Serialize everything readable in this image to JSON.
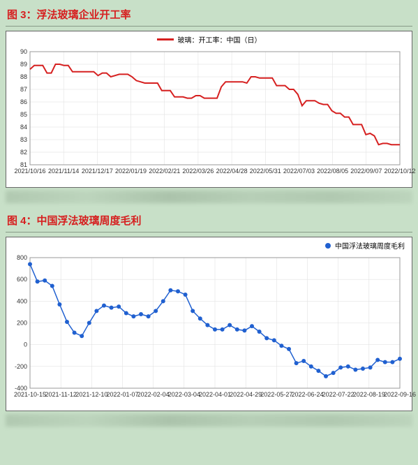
{
  "chart1": {
    "type": "line",
    "figure_label": "图 3：浮法玻璃企业开工率",
    "legend_label": "玻璃：开工率：中国（日）",
    "line_color": "#d62020",
    "line_width": 2,
    "background_color": "#ffffff",
    "border_color": "#666666",
    "grid_color": "#dddddd",
    "tick_font_size": 9,
    "legend_font_size": 10,
    "ylim": [
      81,
      90
    ],
    "ytick_step": 1,
    "x_labels": [
      "2021/10/16",
      "2021/11/14",
      "2021/12/17",
      "2022/01/19",
      "2022/02/21",
      "2022/03/26",
      "2022/04/28",
      "2022/05/31",
      "2022/07/03",
      "2022/08/05",
      "2022/09/07",
      "2022/10/12"
    ],
    "series": [
      {
        "x": 0,
        "y": 88.6
      },
      {
        "x": 1,
        "y": 88.9
      },
      {
        "x": 2,
        "y": 88.9
      },
      {
        "x": 3,
        "y": 88.9
      },
      {
        "x": 4,
        "y": 88.3
      },
      {
        "x": 5,
        "y": 88.3
      },
      {
        "x": 6,
        "y": 89.0
      },
      {
        "x": 7,
        "y": 89.0
      },
      {
        "x": 8,
        "y": 88.9
      },
      {
        "x": 9,
        "y": 88.9
      },
      {
        "x": 10,
        "y": 88.4
      },
      {
        "x": 11,
        "y": 88.4
      },
      {
        "x": 12,
        "y": 88.4
      },
      {
        "x": 13,
        "y": 88.4
      },
      {
        "x": 14,
        "y": 88.4
      },
      {
        "x": 15,
        "y": 88.4
      },
      {
        "x": 16,
        "y": 88.1
      },
      {
        "x": 17,
        "y": 88.3
      },
      {
        "x": 18,
        "y": 88.3
      },
      {
        "x": 19,
        "y": 88.0
      },
      {
        "x": 20,
        "y": 88.1
      },
      {
        "x": 21,
        "y": 88.2
      },
      {
        "x": 22,
        "y": 88.2
      },
      {
        "x": 23,
        "y": 88.2
      },
      {
        "x": 24,
        "y": 88.0
      },
      {
        "x": 25,
        "y": 87.7
      },
      {
        "x": 26,
        "y": 87.6
      },
      {
        "x": 27,
        "y": 87.5
      },
      {
        "x": 28,
        "y": 87.5
      },
      {
        "x": 29,
        "y": 87.5
      },
      {
        "x": 30,
        "y": 87.5
      },
      {
        "x": 31,
        "y": 86.9
      },
      {
        "x": 32,
        "y": 86.9
      },
      {
        "x": 33,
        "y": 86.9
      },
      {
        "x": 34,
        "y": 86.4
      },
      {
        "x": 35,
        "y": 86.4
      },
      {
        "x": 36,
        "y": 86.4
      },
      {
        "x": 37,
        "y": 86.3
      },
      {
        "x": 38,
        "y": 86.3
      },
      {
        "x": 39,
        "y": 86.5
      },
      {
        "x": 40,
        "y": 86.5
      },
      {
        "x": 41,
        "y": 86.3
      },
      {
        "x": 42,
        "y": 86.3
      },
      {
        "x": 43,
        "y": 86.3
      },
      {
        "x": 44,
        "y": 86.3
      },
      {
        "x": 45,
        "y": 87.2
      },
      {
        "x": 46,
        "y": 87.6
      },
      {
        "x": 47,
        "y": 87.6
      },
      {
        "x": 48,
        "y": 87.6
      },
      {
        "x": 49,
        "y": 87.6
      },
      {
        "x": 50,
        "y": 87.6
      },
      {
        "x": 51,
        "y": 87.5
      },
      {
        "x": 52,
        "y": 88.0
      },
      {
        "x": 53,
        "y": 88.0
      },
      {
        "x": 54,
        "y": 87.9
      },
      {
        "x": 55,
        "y": 87.9
      },
      {
        "x": 56,
        "y": 87.9
      },
      {
        "x": 57,
        "y": 87.9
      },
      {
        "x": 58,
        "y": 87.3
      },
      {
        "x": 59,
        "y": 87.3
      },
      {
        "x": 60,
        "y": 87.3
      },
      {
        "x": 61,
        "y": 87.0
      },
      {
        "x": 62,
        "y": 87.0
      },
      {
        "x": 63,
        "y": 86.6
      },
      {
        "x": 64,
        "y": 85.7
      },
      {
        "x": 65,
        "y": 86.1
      },
      {
        "x": 66,
        "y": 86.1
      },
      {
        "x": 67,
        "y": 86.1
      },
      {
        "x": 68,
        "y": 85.9
      },
      {
        "x": 69,
        "y": 85.8
      },
      {
        "x": 70,
        "y": 85.8
      },
      {
        "x": 71,
        "y": 85.3
      },
      {
        "x": 72,
        "y": 85.1
      },
      {
        "x": 73,
        "y": 85.1
      },
      {
        "x": 74,
        "y": 84.8
      },
      {
        "x": 75,
        "y": 84.8
      },
      {
        "x": 76,
        "y": 84.2
      },
      {
        "x": 77,
        "y": 84.2
      },
      {
        "x": 78,
        "y": 84.2
      },
      {
        "x": 79,
        "y": 83.4
      },
      {
        "x": 80,
        "y": 83.5
      },
      {
        "x": 81,
        "y": 83.3
      },
      {
        "x": 82,
        "y": 82.6
      },
      {
        "x": 83,
        "y": 82.7
      },
      {
        "x": 84,
        "y": 82.7
      },
      {
        "x": 85,
        "y": 82.6
      },
      {
        "x": 86,
        "y": 82.6
      },
      {
        "x": 87,
        "y": 82.6
      }
    ],
    "x_max": 87
  },
  "chart2": {
    "type": "line",
    "figure_label": "图 4：中国浮法玻璃周度毛利",
    "legend_label": "中国浮法玻璃周度毛利",
    "line_color": "#2060d0",
    "line_width": 1.5,
    "marker_style": "circle",
    "marker_size": 3,
    "marker_color": "#2060d0",
    "background_color": "#ffffff",
    "border_color": "#666666",
    "grid_color": "#dddddd",
    "tick_font_size": 9,
    "legend_font_size": 9,
    "ylim": [
      -400,
      800
    ],
    "ytick_step": 200,
    "x_labels": [
      "2021-10-15",
      "2021-11-12",
      "2021-12-10",
      "2022-01-07",
      "2022-02-04",
      "2022-03-04",
      "2022-04-01",
      "2022-04-29",
      "2022-05-27",
      "2022-06-24",
      "2022-07-22",
      "2022-08-19",
      "2022-09-16"
    ],
    "series": [
      {
        "x": 0,
        "y": 740
      },
      {
        "x": 1,
        "y": 580
      },
      {
        "x": 2,
        "y": 590
      },
      {
        "x": 3,
        "y": 540
      },
      {
        "x": 4,
        "y": 370
      },
      {
        "x": 5,
        "y": 210
      },
      {
        "x": 6,
        "y": 110
      },
      {
        "x": 7,
        "y": 80
      },
      {
        "x": 8,
        "y": 200
      },
      {
        "x": 9,
        "y": 310
      },
      {
        "x": 10,
        "y": 360
      },
      {
        "x": 11,
        "y": 340
      },
      {
        "x": 12,
        "y": 350
      },
      {
        "x": 13,
        "y": 290
      },
      {
        "x": 14,
        "y": 260
      },
      {
        "x": 15,
        "y": 280
      },
      {
        "x": 16,
        "y": 260
      },
      {
        "x": 17,
        "y": 310
      },
      {
        "x": 18,
        "y": 400
      },
      {
        "x": 19,
        "y": 500
      },
      {
        "x": 20,
        "y": 490
      },
      {
        "x": 21,
        "y": 460
      },
      {
        "x": 22,
        "y": 310
      },
      {
        "x": 23,
        "y": 240
      },
      {
        "x": 24,
        "y": 180
      },
      {
        "x": 25,
        "y": 140
      },
      {
        "x": 26,
        "y": 140
      },
      {
        "x": 27,
        "y": 180
      },
      {
        "x": 28,
        "y": 140
      },
      {
        "x": 29,
        "y": 130
      },
      {
        "x": 30,
        "y": 170
      },
      {
        "x": 31,
        "y": 120
      },
      {
        "x": 32,
        "y": 60
      },
      {
        "x": 33,
        "y": 40
      },
      {
        "x": 34,
        "y": -10
      },
      {
        "x": 35,
        "y": -40
      },
      {
        "x": 36,
        "y": -170
      },
      {
        "x": 37,
        "y": -150
      },
      {
        "x": 38,
        "y": -200
      },
      {
        "x": 39,
        "y": -240
      },
      {
        "x": 40,
        "y": -290
      },
      {
        "x": 41,
        "y": -260
      },
      {
        "x": 42,
        "y": -210
      },
      {
        "x": 43,
        "y": -200
      },
      {
        "x": 44,
        "y": -230
      },
      {
        "x": 45,
        "y": -220
      },
      {
        "x": 46,
        "y": -210
      },
      {
        "x": 47,
        "y": -140
      },
      {
        "x": 48,
        "y": -160
      },
      {
        "x": 49,
        "y": -160
      },
      {
        "x": 50,
        "y": -130
      }
    ],
    "x_max": 50
  }
}
